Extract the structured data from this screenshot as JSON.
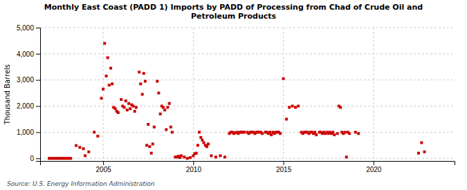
{
  "chart_data": {
    "type": "scatter",
    "title": "Monthly East Coast (PADD 1) Imports by PADD of Processing from Chad of Crude Oil and\nPetroleum Products",
    "ylabel": "Thousand Barrels",
    "source": "Source: U.S. Energy Information Administration",
    "color": "#cc0000",
    "marker": "square",
    "grid": true,
    "xlim": [
      2001.5,
      2024.5
    ],
    "xticks": [
      2005,
      2010,
      2015,
      2020
    ],
    "ylim": [
      -100,
      5000
    ],
    "yticks": [
      0,
      {
        "value": 1000,
        "label": "1,000"
      },
      {
        "value": 2000,
        "label": "2,000"
      },
      {
        "value": 3000,
        "label": "3,000"
      },
      {
        "value": 4000,
        "label": "4,000"
      },
      {
        "value": 5000,
        "label": "5,000"
      }
    ],
    "x": [
      2002.0,
      2002.1,
      2002.2,
      2002.3,
      2002.4,
      2002.5,
      2002.6,
      2002.7,
      2002.8,
      2002.9,
      2003.0,
      2003.1,
      2003.2,
      2003.5,
      2003.7,
      2003.9,
      2004.0,
      2004.2,
      2004.5,
      2004.7,
      2004.9,
      2005.0,
      2005.08,
      2005.17,
      2005.25,
      2005.33,
      2005.42,
      2005.5,
      2005.58,
      2005.67,
      2005.75,
      2005.83,
      2006.0,
      2006.08,
      2006.17,
      2006.25,
      2006.33,
      2006.42,
      2006.5,
      2006.58,
      2006.67,
      2006.75,
      2006.83,
      2007.0,
      2007.08,
      2007.17,
      2007.25,
      2007.33,
      2007.42,
      2007.5,
      2007.58,
      2007.67,
      2007.75,
      2007.83,
      2008.0,
      2008.08,
      2008.17,
      2008.25,
      2008.33,
      2008.42,
      2008.5,
      2008.58,
      2008.67,
      2008.75,
      2008.83,
      2009.0,
      2009.08,
      2009.17,
      2009.25,
      2009.33,
      2009.5,
      2009.67,
      2009.83,
      2010.0,
      2010.08,
      2010.17,
      2010.25,
      2010.33,
      2010.42,
      2010.5,
      2010.58,
      2010.67,
      2010.75,
      2010.83,
      2011.0,
      2011.25,
      2011.5,
      2011.75,
      2012.0,
      2012.08,
      2012.17,
      2012.25,
      2012.33,
      2012.42,
      2012.5,
      2012.58,
      2012.67,
      2012.75,
      2012.83,
      2013.0,
      2013.08,
      2013.17,
      2013.25,
      2013.33,
      2013.42,
      2013.5,
      2013.58,
      2013.67,
      2013.75,
      2013.83,
      2014.0,
      2014.08,
      2014.17,
      2014.25,
      2014.33,
      2014.42,
      2014.5,
      2014.58,
      2014.67,
      2014.75,
      2014.83,
      2015.0,
      2015.17,
      2015.33,
      2015.5,
      2015.67,
      2015.83,
      2016.0,
      2016.08,
      2016.17,
      2016.25,
      2016.33,
      2016.42,
      2016.5,
      2016.58,
      2016.67,
      2016.75,
      2016.83,
      2017.0,
      2017.08,
      2017.17,
      2017.25,
      2017.33,
      2017.42,
      2017.5,
      2017.58,
      2017.67,
      2017.75,
      2017.83,
      2018.0,
      2018.08,
      2018.17,
      2018.25,
      2018.33,
      2018.42,
      2018.5,
      2018.58,
      2018.67,
      2019.0,
      2019.17,
      2022.5,
      2022.67,
      2022.83
    ],
    "values": [
      0,
      0,
      0,
      0,
      0,
      0,
      0,
      0,
      0,
      0,
      0,
      0,
      0,
      490,
      420,
      370,
      100,
      250,
      1000,
      850,
      2300,
      2650,
      4400,
      3150,
      3850,
      2800,
      3450,
      2850,
      1950,
      1900,
      1800,
      1750,
      2250,
      2000,
      1950,
      2200,
      1850,
      2100,
      1900,
      2050,
      2000,
      1800,
      1950,
      3300,
      2850,
      2450,
      3250,
      2950,
      500,
      1300,
      450,
      200,
      550,
      1200,
      2950,
      2500,
      1700,
      2000,
      1950,
      1850,
      1100,
      1950,
      2100,
      1200,
      1000,
      50,
      50,
      80,
      30,
      100,
      50,
      0,
      30,
      100,
      180,
      200,
      500,
      1000,
      800,
      700,
      600,
      500,
      450,
      550,
      100,
      50,
      100,
      50,
      950,
      1000,
      1000,
      950,
      980,
      1000,
      950,
      1000,
      1000,
      1000,
      1000,
      1000,
      950,
      1000,
      1000,
      1000,
      950,
      1000,
      1000,
      1000,
      1000,
      950,
      1000,
      1000,
      950,
      1000,
      900,
      1000,
      950,
      1000,
      1000,
      1000,
      950,
      3050,
      1500,
      1950,
      2000,
      1950,
      2000,
      1000,
      950,
      1000,
      1000,
      1000,
      950,
      1000,
      1000,
      950,
      1000,
      900,
      1000,
      1000,
      950,
      1000,
      950,
      1000,
      950,
      1000,
      950,
      1000,
      900,
      950,
      2000,
      1950,
      1000,
      950,
      1000,
      50,
      1000,
      950,
      1000,
      950,
      200,
      600,
      250
    ]
  }
}
